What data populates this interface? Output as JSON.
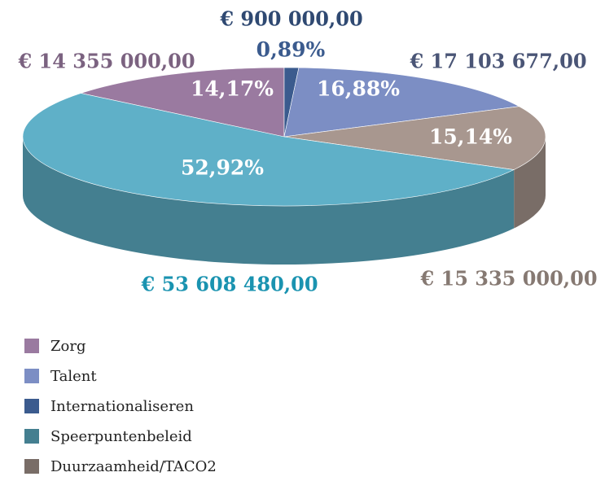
{
  "chart_data": {
    "type": "pie",
    "categories": [
      "Zorg",
      "Talent",
      "Internationaliseren",
      "Speerpuntenbeleid",
      "Duurzaamheid/TACO2"
    ],
    "values": [
      14.17,
      16.88,
      0.89,
      52.92,
      15.14
    ],
    "value_labels": [
      "14,17%",
      "16,88%",
      "0,89%",
      "52,92%",
      "15,14%"
    ],
    "amount_labels": [
      "€ 14 355 000,00",
      "€ 17 103 677,00",
      "€ 900 000,00",
      "€ 53 608 480,00",
      "€ 15 335 000,00"
    ],
    "colors": [
      "#9a7aa0",
      "#7c8ec4",
      "#3b5b8e",
      "#5fb0c8",
      "#a8978f"
    ],
    "legend": "bottom-left"
  }
}
